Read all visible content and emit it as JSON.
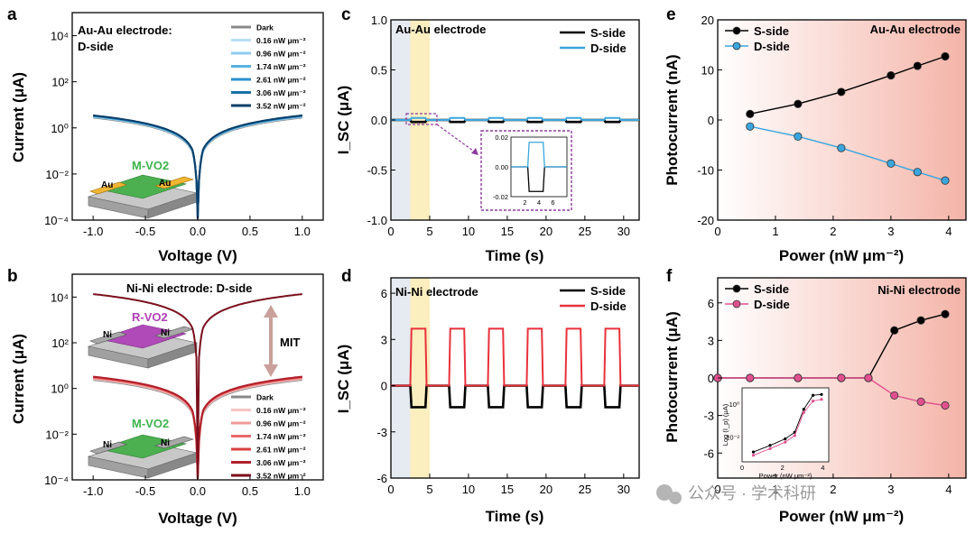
{
  "watermark": "公众号 · 学术科研",
  "chart_data": [
    {
      "panel": "a",
      "type": "line",
      "annotation_lines": [
        "Au-Au electrode:",
        "D-side"
      ],
      "device_label": "M-VO2",
      "contacts": [
        "Au",
        "Au"
      ],
      "xlabel": "Voltage (V)",
      "ylabel": "Current (μA)",
      "xlim": [
        -1.2,
        1.2
      ],
      "xticks": [
        "-1.0",
        "-0.5",
        "0.0",
        "0.5",
        "1.0"
      ],
      "ylim_log10": [
        -4,
        5
      ],
      "yticks": [
        "10⁻⁴",
        "10⁻²",
        "10⁰",
        "10²",
        "10⁴"
      ],
      "yscale": "log",
      "legend_position": "top-right",
      "series": [
        {
          "name": "Dark",
          "color": "#888888",
          "i_at_1V": 2.8
        },
        {
          "name": "0.16 nW μm⁻²",
          "color": "#b7dff4",
          "i_at_1V": 3.0
        },
        {
          "name": "0.96 nW μm⁻²",
          "color": "#8ccbee",
          "i_at_1V": 3.1
        },
        {
          "name": "1.74 nW μm⁻²",
          "color": "#5ab1e2",
          "i_at_1V": 3.2
        },
        {
          "name": "2.61 nW μm⁻²",
          "color": "#2e92cc",
          "i_at_1V": 3.3
        },
        {
          "name": "3.06 nW μm⁻²",
          "color": "#1871a8",
          "i_at_1V": 3.4
        },
        {
          "name": "3.52 nW μm⁻²",
          "color": "#0b3f6a",
          "i_at_1V": 3.5
        }
      ]
    },
    {
      "panel": "b",
      "type": "line",
      "annotation_lines": [
        "Ni-Ni electrode: D-side"
      ],
      "device_labels": [
        "R-VO2",
        "M-VO2"
      ],
      "contacts": [
        "Ni",
        "Ni"
      ],
      "arrow_label": "MIT",
      "xlabel": "Voltage (V)",
      "ylabel": "Current (μA)",
      "xlim": [
        -1.2,
        1.2
      ],
      "xticks": [
        "-1.0",
        "-0.5",
        "0.0",
        "0.5",
        "1.0"
      ],
      "ylim_log10": [
        -4,
        5
      ],
      "yticks": [
        "10⁻⁴",
        "10⁻²",
        "10⁰",
        "10²",
        "10⁴"
      ],
      "yscale": "log",
      "legend_position": "bottom-right",
      "series": [
        {
          "name": "Dark",
          "color": "#888888",
          "i_at_1V": 2.4
        },
        {
          "name": "0.16 nW μm⁻²",
          "color": "#f6c4c4",
          "i_at_1V": 2.6
        },
        {
          "name": "0.96 nW μm⁻²",
          "color": "#f09a9a",
          "i_at_1V": 2.8
        },
        {
          "name": "1.74 nW μm⁻²",
          "color": "#e86a6a",
          "i_at_1V": 3.0
        },
        {
          "name": "2.61 nW μm⁻²",
          "color": "#d83f3f",
          "i_at_1V": 3.2
        },
        {
          "name": "3.06 nW μm⁻²",
          "color": "#b01f2a",
          "i_at_1V": 3.3
        },
        {
          "name": "3.52 nW μm⁻²",
          "color": "#7a0f1c",
          "i_at_1V": 13500
        }
      ]
    },
    {
      "panel": "c",
      "type": "line",
      "annotation": "Au-Au electrode",
      "xlabel": "Time (s)",
      "ylabel": "I_SC (μA)",
      "xlim": [
        0,
        32
      ],
      "xticks": [
        "0",
        "5",
        "10",
        "15",
        "20",
        "25",
        "30"
      ],
      "ylim": [
        -1.0,
        1.0
      ],
      "yticks": [
        "1.0",
        "0.5",
        "0.0",
        "-0.5",
        "-1.0"
      ],
      "shaded_regions_s": [
        [
          0,
          2.5
        ],
        [
          2.5,
          5
        ]
      ],
      "pulses_s": [
        [
          2.5,
          4.6
        ],
        [
          7.5,
          9.6
        ],
        [
          12.5,
          14.6
        ],
        [
          17.5,
          19.6
        ],
        [
          22.5,
          24.6
        ],
        [
          27.5,
          29.6
        ]
      ],
      "series": [
        {
          "name": "S-side",
          "color": "#000000",
          "on_value": -0.02
        },
        {
          "name": "D-side",
          "color": "#3aa6de",
          "on_value": 0.02
        }
      ],
      "inset": {
        "xlim": [
          0,
          8
        ],
        "xticks": [
          "2",
          "4",
          "6"
        ],
        "ylim": [
          -0.02,
          0.02
        ],
        "yticks": [
          "0.02",
          "0.00",
          "-0.02"
        ]
      }
    },
    {
      "panel": "d",
      "type": "line",
      "annotation": "Ni-Ni electrode",
      "xlabel": "Time (s)",
      "ylabel": "I_SC (μA)",
      "xlim": [
        0,
        32
      ],
      "xticks": [
        "0",
        "5",
        "10",
        "15",
        "20",
        "25",
        "30"
      ],
      "ylim": [
        -6,
        7
      ],
      "yticks": [
        "6",
        "3",
        "0",
        "-3",
        "-6"
      ],
      "shaded_regions_s": [
        [
          0,
          2.5
        ],
        [
          2.5,
          5
        ]
      ],
      "pulses_s": [
        [
          2.5,
          4.6
        ],
        [
          7.5,
          9.6
        ],
        [
          12.5,
          14.6
        ],
        [
          17.5,
          19.6
        ],
        [
          22.5,
          24.6
        ],
        [
          27.5,
          29.6
        ]
      ],
      "series": [
        {
          "name": "S-side",
          "color": "#000000",
          "on_value": -1.4
        },
        {
          "name": "D-side",
          "color": "#e8323c",
          "on_value": 3.7
        }
      ]
    },
    {
      "panel": "e",
      "type": "scatter",
      "annotation": "Au-Au electrode",
      "xlabel": "Power (nW μm⁻²)",
      "ylabel": "Photocurrent (nA)",
      "xlim": [
        0,
        4.3
      ],
      "xticks": [
        "0",
        "1",
        "2",
        "3",
        "4"
      ],
      "ylim": [
        -20,
        20
      ],
      "yticks": [
        "20",
        "10",
        "0",
        "-10",
        "-20"
      ],
      "x": [
        0.56,
        1.39,
        2.14,
        3.0,
        3.46,
        3.94
      ],
      "series": [
        {
          "name": "S-side",
          "color": "#000000",
          "values": [
            1.2,
            3.2,
            5.6,
            8.9,
            10.8,
            12.7
          ]
        },
        {
          "name": "D-side",
          "color": "#3aa6de",
          "values": [
            -1.3,
            -3.3,
            -5.6,
            -8.7,
            -10.4,
            -12.1
          ]
        }
      ]
    },
    {
      "panel": "f",
      "type": "scatter",
      "annotation": "Ni-Ni electrode",
      "xlabel": "Power (nW μm⁻²)",
      "ylabel": "Photocurrent (μA)",
      "xlim": [
        0,
        4.3
      ],
      "xticks": [
        "0",
        "1",
        "2",
        "3",
        "4"
      ],
      "ylim": [
        -8,
        8
      ],
      "yticks": [
        "6",
        "3",
        "0",
        "-3",
        "-6"
      ],
      "x": [
        0.0,
        0.56,
        1.39,
        2.14,
        2.61,
        3.06,
        3.52,
        3.94
      ],
      "series": [
        {
          "name": "S-side",
          "color": "#000000",
          "values": [
            0,
            0,
            0,
            0,
            0,
            3.8,
            4.6,
            5.1
          ]
        },
        {
          "name": "D-side",
          "color": "#e0508f",
          "values": [
            0,
            0,
            0,
            0,
            0,
            -1.4,
            -1.9,
            -2.2
          ]
        }
      ],
      "inset": {
        "xlabel": "Power (nW μm⁻²)",
        "ylabel": "Log (I_p) (μA)",
        "xlim": [
          0,
          4.3
        ],
        "xticks": [
          "0",
          "2",
          "4"
        ],
        "ylim_log10": [
          -3.5,
          1
        ],
        "yticks": [
          "10⁰",
          "10⁻²"
        ]
      }
    }
  ]
}
